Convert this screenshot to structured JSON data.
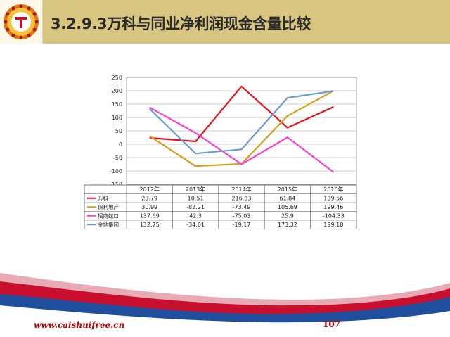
{
  "title": "3.2.9.3万科与同业净利润现金含量比较",
  "footer": {
    "url": "www.caishuifree.cn",
    "page_number": "107"
  },
  "colors": {
    "header_bg": "#d8c680",
    "wave_red": "#c8102e",
    "wave_blue": "#1f4e9c",
    "footer_text": "#c00000"
  },
  "chart_data": {
    "type": "line",
    "categories": [
      "2012年",
      "2013年",
      "2014年",
      "2015年",
      "2016年"
    ],
    "y_ticks": [
      "250",
      "200",
      "150",
      "100",
      "50",
      "0",
      "-50",
      "-100",
      "-150"
    ],
    "ylim": [
      -150,
      250
    ],
    "grid": true,
    "legend": "data-table-below",
    "series": [
      {
        "name": "万科",
        "color": "#e8141e",
        "values": [
          23.79,
          10.51,
          216.33,
          61.84,
          139.56
        ],
        "labels": [
          "23.79",
          "10.51",
          "216.33",
          "61.84",
          "139.56"
        ]
      },
      {
        "name": "保利地产",
        "color": "#d4a017",
        "values": [
          30.99,
          -82.21,
          -73.49,
          105.69,
          199.46
        ],
        "labels": [
          "30.99",
          "-82.21",
          "-73.49",
          "105.69",
          "199.46"
        ]
      },
      {
        "name": "招商蛇口",
        "color": "#ff3fd0",
        "values": [
          137.69,
          42.3,
          -75.03,
          25.9,
          -104.33
        ],
        "labels": [
          "137.69",
          "42.3",
          "-75.03",
          "25.9",
          "-104.33"
        ]
      },
      {
        "name": "金地集团",
        "color": "#6b9bd1",
        "values": [
          132.75,
          -34.61,
          -19.17,
          173.32,
          199.18
        ],
        "labels": [
          "132.75",
          "-34.61",
          "-19.17",
          "173.32",
          "199.18"
        ]
      }
    ]
  }
}
